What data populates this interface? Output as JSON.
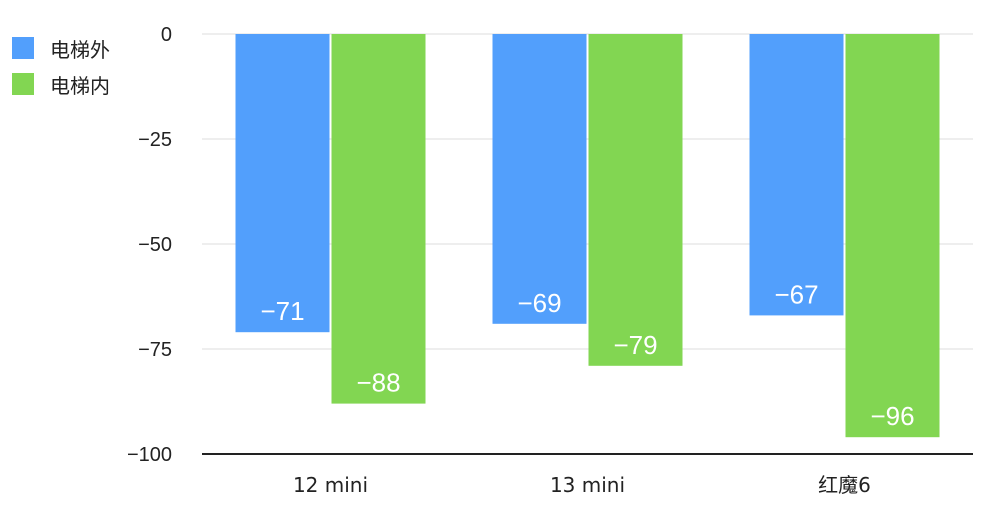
{
  "chart_data": {
    "type": "bar",
    "categories": [
      "12 mini",
      "13 mini",
      "红魔6"
    ],
    "series": [
      {
        "name": "电梯外",
        "values": [
          -71,
          -69,
          -67
        ],
        "color": "#529ffc"
      },
      {
        "name": "电梯内",
        "values": [
          -88,
          -79,
          -96
        ],
        "color": "#82d652"
      }
    ],
    "data_labels": [
      [
        "−71",
        "−69",
        "−67"
      ],
      [
        "−88",
        "−79",
        "−96"
      ]
    ],
    "ylim": [
      -100,
      0
    ],
    "yticks": [
      0,
      -25,
      -50,
      -75,
      -100
    ],
    "ytick_labels": [
      "0",
      "−25",
      "−50",
      "−75",
      "−100"
    ],
    "grid": true,
    "legend_position": "top-left"
  }
}
